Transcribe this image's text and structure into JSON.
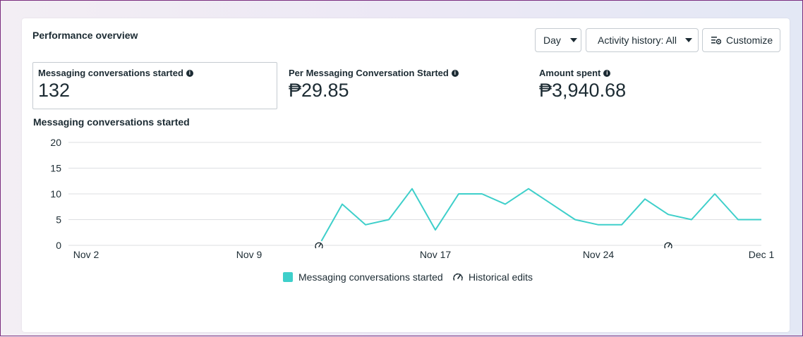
{
  "header": {
    "title": "Performance overview"
  },
  "controls": {
    "day_label": "Day",
    "activity_label": "Activity history: All",
    "customize_label": "Customize"
  },
  "metrics": [
    {
      "label": "Messaging conversations started",
      "value": "132"
    },
    {
      "label": "Per Messaging Conversation Started",
      "value": "₱29.85"
    },
    {
      "label": "Amount spent",
      "value": "₱3,940.68"
    }
  ],
  "chart": {
    "title": "Messaging conversations started",
    "legend": {
      "series_label": "Messaging conversations started",
      "edits_label": "Historical edits"
    },
    "colors": {
      "series": "#3ecfca",
      "grid": "#dddfe2"
    }
  },
  "chart_data": {
    "type": "line",
    "title": "Messaging conversations started",
    "yticks": [
      0,
      5,
      10,
      15,
      20
    ],
    "ylim": [
      0,
      20
    ],
    "xtick_labels": [
      "Nov 2",
      "Nov 9",
      "Nov 17",
      "Nov 24",
      "Dec 1"
    ],
    "xrange": [
      "Nov 2",
      "Dec 1"
    ],
    "grid": true,
    "legend_position": "bottom",
    "series": [
      {
        "name": "Messaging conversations started",
        "x": [
          "Nov 12",
          "Nov 13",
          "Nov 14",
          "Nov 15",
          "Nov 16",
          "Nov 17",
          "Nov 18",
          "Nov 19",
          "Nov 20",
          "Nov 21",
          "Nov 22",
          "Nov 23",
          "Nov 24",
          "Nov 25",
          "Nov 26",
          "Nov 27",
          "Nov 28",
          "Nov 29",
          "Nov 30",
          "Dec 1"
        ],
        "values": [
          0,
          8,
          4,
          5,
          11,
          3,
          10,
          10,
          8,
          11,
          8,
          5,
          4,
          4,
          9,
          6,
          5,
          10,
          5,
          5
        ]
      }
    ],
    "historical_edits": [
      "Nov 12",
      "Nov 27"
    ]
  }
}
